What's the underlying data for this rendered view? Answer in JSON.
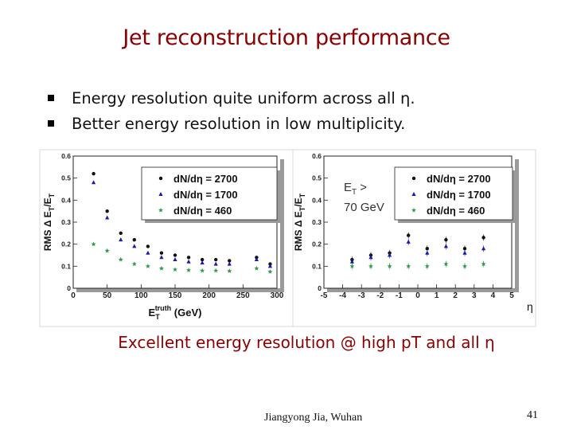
{
  "slide": {
    "title": "Jet reconstruction performance",
    "bullets": [
      "Energy resolution quite uniform across all η.",
      "Better energy resolution in low multiplicity."
    ],
    "caption": "Excellent energy resolution @ high pT and all η",
    "author": "Jiangyong Jia, Wuhan",
    "page_number": "41"
  },
  "chart_data": [
    {
      "type": "scatter",
      "title": "",
      "ylabel": "RMS Δ E_T/E_T",
      "xlabel": "E_T^truth (GeV)",
      "xlim": [
        0,
        300
      ],
      "ylim": [
        0,
        0.6
      ],
      "xticks": [
        "0",
        "50",
        "100",
        "150",
        "200",
        "250",
        "300"
      ],
      "yticks": [
        "0",
        "0.1",
        "0.2",
        "0.3",
        "0.4",
        "0.5",
        "0.6"
      ],
      "legend_position": "top-right",
      "series": [
        {
          "name": "dN/dη = 2700",
          "marker": "circle",
          "color": "#111111",
          "x": [
            30,
            50,
            70,
            90,
            110,
            130,
            150,
            170,
            190,
            210,
            230,
            270,
            290
          ],
          "y": [
            0.52,
            0.35,
            0.25,
            0.22,
            0.19,
            0.16,
            0.15,
            0.14,
            0.13,
            0.13,
            0.125,
            0.14,
            0.11
          ]
        },
        {
          "name": "dN/dη = 1700",
          "marker": "triangle",
          "color": "#1a1aa8",
          "x": [
            30,
            50,
            70,
            90,
            110,
            130,
            150,
            170,
            190,
            210,
            230,
            270,
            290
          ],
          "y": [
            0.48,
            0.32,
            0.22,
            0.19,
            0.16,
            0.14,
            0.13,
            0.12,
            0.115,
            0.11,
            0.11,
            0.13,
            0.1
          ]
        },
        {
          "name": "dN/dη = 460",
          "marker": "star",
          "color": "#2e9b4e",
          "x": [
            30,
            50,
            70,
            90,
            110,
            130,
            150,
            170,
            190,
            210,
            230,
            270,
            290
          ],
          "y": [
            0.2,
            0.17,
            0.13,
            0.11,
            0.1,
            0.09,
            0.085,
            0.082,
            0.08,
            0.08,
            0.078,
            0.09,
            0.075
          ]
        }
      ]
    },
    {
      "type": "scatter",
      "title": "",
      "annotation_line1": "E",
      "annotation_sub": "T",
      "annotation_gt": " >",
      "annotation_line2": "70 GeV",
      "ylabel": "RMS Δ E_T/E_T",
      "xlabel": "η",
      "xlim": [
        -5,
        5
      ],
      "ylim": [
        0,
        0.6
      ],
      "xticks": [
        "-5",
        "-4",
        "-3",
        "-2",
        "-1",
        "0",
        "1",
        "2",
        "3",
        "4",
        "5"
      ],
      "yticks": [
        "0",
        "0.1",
        "0.2",
        "0.3",
        "0.4",
        "0.5",
        "0.6"
      ],
      "legend_position": "top-right",
      "series": [
        {
          "name": "dN/dη = 2700",
          "marker": "circle",
          "color": "#111111",
          "x": [
            -3.5,
            -2.5,
            -1.5,
            -0.5,
            0.5,
            1.5,
            2.5,
            3.5
          ],
          "y": [
            0.13,
            0.15,
            0.16,
            0.24,
            0.18,
            0.22,
            0.18,
            0.23
          ]
        },
        {
          "name": "dN/dη = 1700",
          "marker": "triangle",
          "color": "#1a1aa8",
          "x": [
            -3.5,
            -2.5,
            -1.5,
            -0.5,
            0.5,
            1.5,
            2.5,
            3.5
          ],
          "y": [
            0.12,
            0.14,
            0.15,
            0.21,
            0.16,
            0.19,
            0.16,
            0.18
          ]
        },
        {
          "name": "dN/dη = 460",
          "marker": "star",
          "color": "#2e9b4e",
          "x": [
            -3.5,
            -2.5,
            -1.5,
            -0.5,
            0.5,
            1.5,
            2.5,
            3.5
          ],
          "y": [
            0.1,
            0.1,
            0.1,
            0.1,
            0.1,
            0.11,
            0.1,
            0.11
          ]
        }
      ]
    }
  ]
}
